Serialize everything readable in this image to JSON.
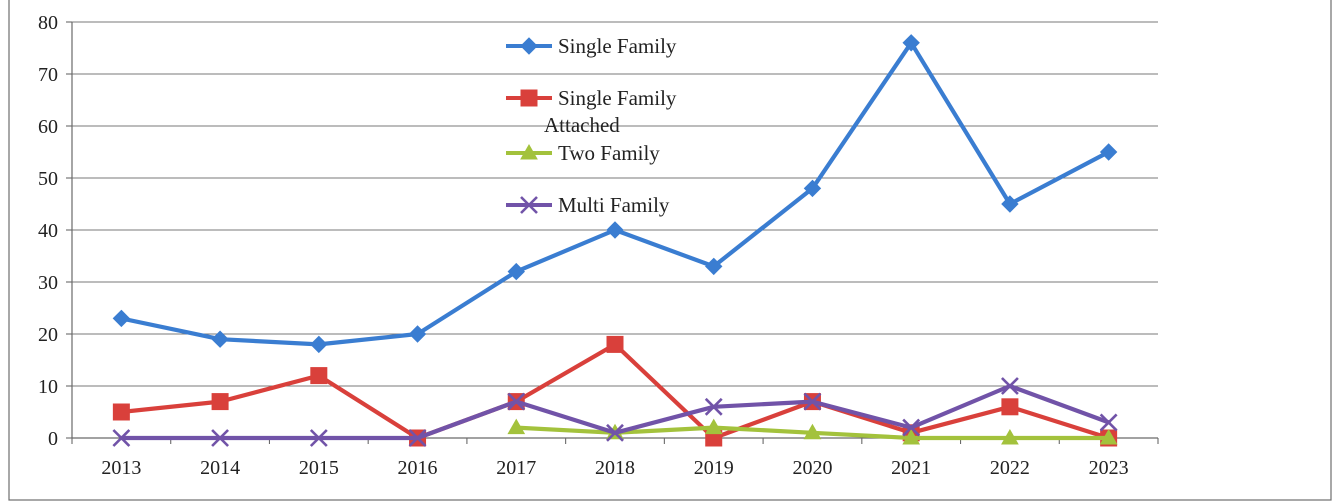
{
  "chart_data": {
    "type": "line",
    "title": "",
    "xlabel": "",
    "ylabel": "",
    "categories": [
      "2013",
      "2014",
      "2015",
      "2016",
      "2017",
      "2018",
      "2019",
      "2020",
      "2021",
      "2022",
      "2023"
    ],
    "ylim": [
      0,
      80
    ],
    "yticks": [
      "0",
      "10",
      "20",
      "30",
      "40",
      "50",
      "60",
      "70",
      "80"
    ],
    "grid": true,
    "legend_position": "top-center",
    "series": [
      {
        "name": "Single Family",
        "color": "#3a7dd1",
        "marker": "diamond",
        "values": [
          23,
          19,
          18,
          20,
          32,
          40,
          33,
          48,
          76,
          45,
          55
        ]
      },
      {
        "name_line1": "Single Family",
        "name_line2": "Attached",
        "color": "#d9403b",
        "marker": "square",
        "values": [
          5,
          7,
          12,
          0,
          7,
          18,
          0,
          7,
          1,
          6,
          0
        ]
      },
      {
        "name": "Two Family",
        "color": "#a3c23c",
        "marker": "triangle",
        "values": [
          null,
          null,
          null,
          null,
          2,
          1,
          2,
          1,
          0,
          0,
          0
        ]
      },
      {
        "name": "Multi Family",
        "color": "#7153a8",
        "marker": "x",
        "values": [
          0,
          0,
          0,
          0,
          7,
          1,
          6,
          7,
          2,
          10,
          3
        ]
      }
    ]
  }
}
